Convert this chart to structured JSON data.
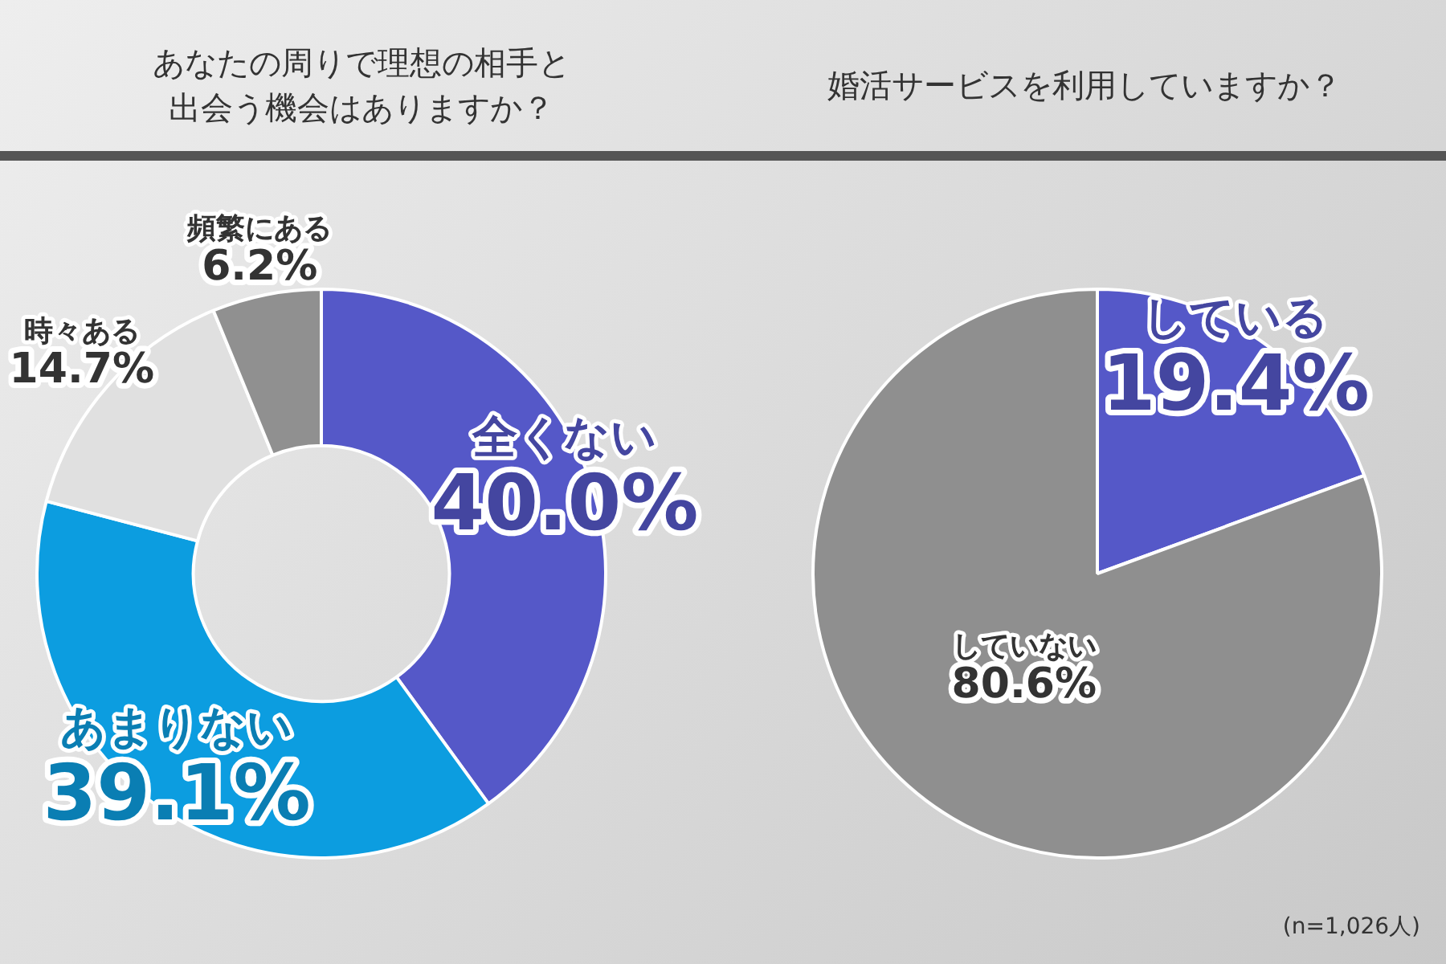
{
  "chart_data": [
    {
      "type": "donut",
      "title": "あなたの周りで理想の相手と出会う機会はありますか？",
      "categories": [
        "全くない",
        "あまりない",
        "時々ある",
        "頻繁にある"
      ],
      "values": [
        40.0,
        39.1,
        14.7,
        6.2
      ],
      "value_labels": [
        "40.0%",
        "39.1%",
        "14.7%",
        "6.2%"
      ],
      "colors": [
        "#5558c8",
        "#0c9de0",
        "#e0e0e0",
        "#909090"
      ]
    },
    {
      "type": "pie",
      "title": "婚活サービスを利用していますか？",
      "categories": [
        "している",
        "していない"
      ],
      "values": [
        19.4,
        80.6
      ],
      "value_labels": [
        "19.4%",
        "80.6%"
      ],
      "colors": [
        "#5558c8",
        "#8f8f8f"
      ],
      "annotations": [
        "(n=1,026人)"
      ]
    }
  ]
}
